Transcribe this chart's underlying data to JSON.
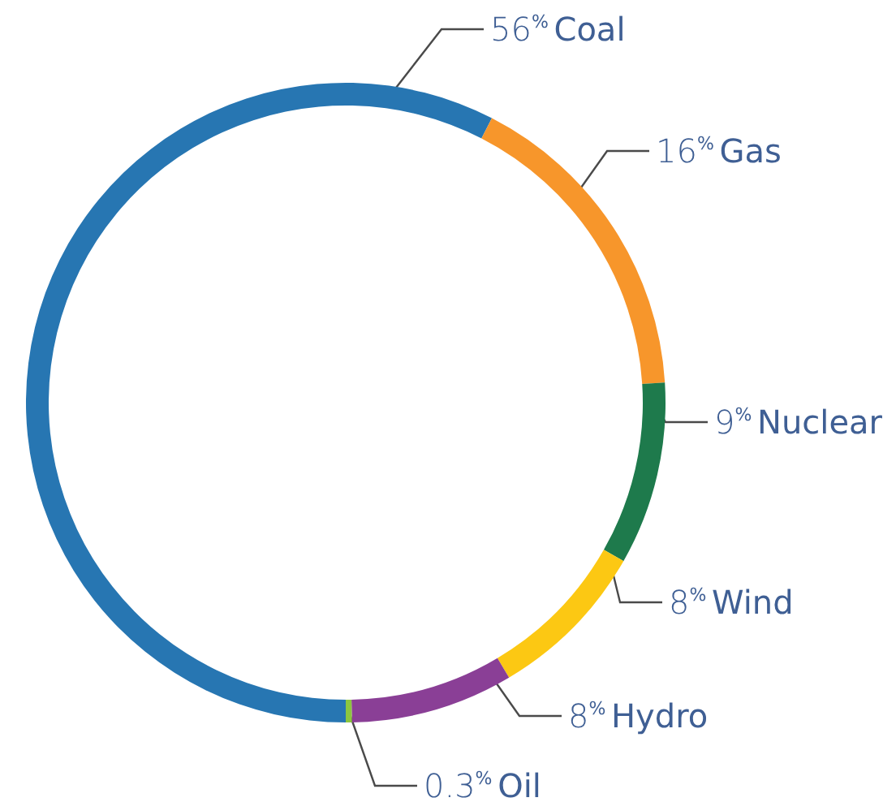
{
  "chart_data": {
    "type": "donut",
    "categories": [
      "Coal",
      "Gas",
      "Nuclear",
      "Wind",
      "Hydro",
      "Oil"
    ],
    "values": [
      56,
      16,
      9,
      8,
      8,
      0.3
    ],
    "value_labels": [
      "56%",
      "16%",
      "9%",
      "8%",
      "8%",
      "0.3%"
    ],
    "colors": [
      "#2776b2",
      "#f7962b",
      "#1e7a4c",
      "#fcc813",
      "#8a3f96",
      "#8cc63f"
    ],
    "legend": false
  }
}
